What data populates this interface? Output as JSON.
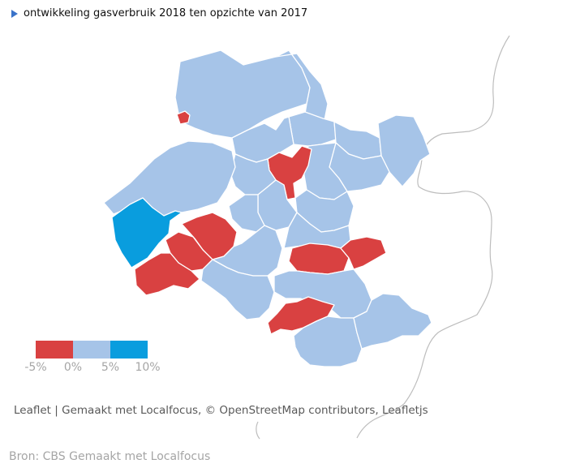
{
  "title": "ontwikkeling gasverbruik 2018 ten opzichte van 2017",
  "colors": {
    "negative": "#d94141",
    "neutral": "#a6c4e8",
    "positive": "#099dde",
    "border": "#ffffff",
    "outline": "#bdbdbd"
  },
  "legend": {
    "ticks": [
      "-5%",
      "0%",
      "5%",
      "10%"
    ]
  },
  "attribution": {
    "leaflet": "Leaflet",
    "separator": "|",
    "credits": "Gemaakt met Localfocus, © OpenStreetMap contributors, Leafletjs"
  },
  "source": {
    "label": "Bron: CBS",
    "made_with": "Gemaakt met Localfocus"
  }
}
